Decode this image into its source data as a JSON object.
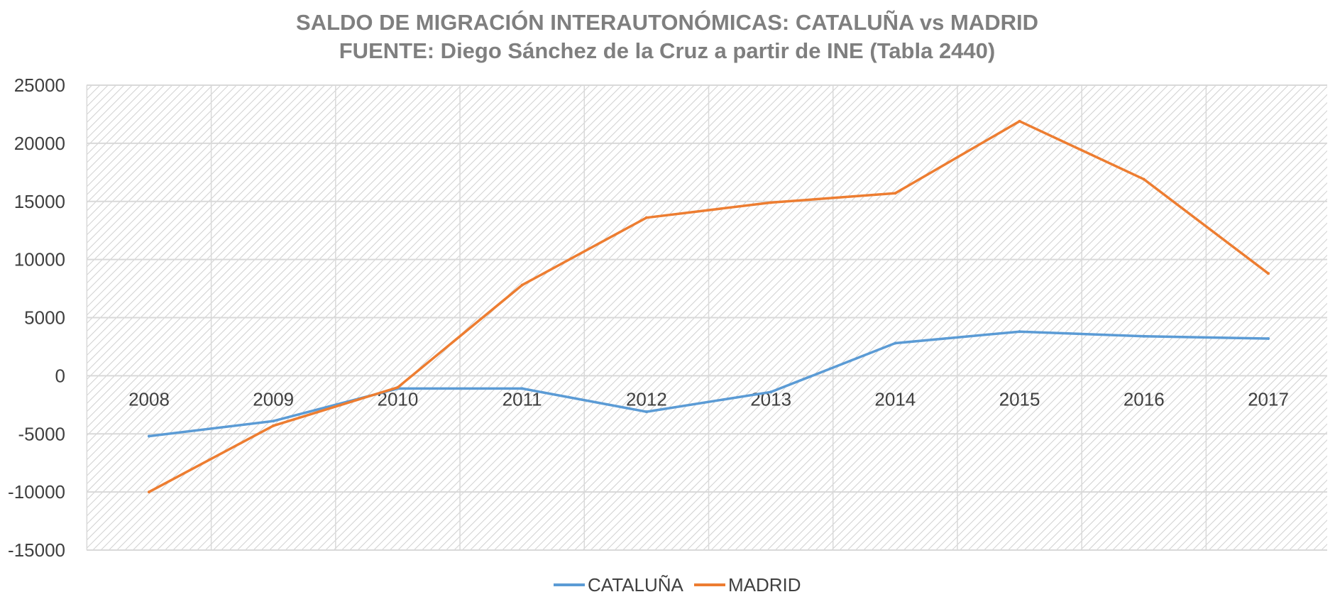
{
  "chart_data": {
    "type": "line",
    "title": "SALDO DE MIGRACIÓN INTERAUTONÓMICAS: CATALUÑA vs MADRID",
    "subtitle": "FUENTE: Diego Sánchez de la Cruz a partir de INE (Tabla 2440)",
    "xlabel": "",
    "ylabel": "",
    "categories": [
      "2008",
      "2009",
      "2010",
      "2011",
      "2012",
      "2013",
      "2014",
      "2015",
      "2016",
      "2017"
    ],
    "series": [
      {
        "name": "CATALUÑA",
        "color": "#5b9bd5",
        "values": [
          -5200,
          -3900,
          -1100,
          -1100,
          -3100,
          -1400,
          2800,
          3800,
          3400,
          3200
        ]
      },
      {
        "name": "MADRID",
        "color": "#ed7d31",
        "values": [
          -10000,
          -4300,
          -1000,
          7800,
          13600,
          14900,
          15700,
          21900,
          16900,
          8800
        ]
      }
    ],
    "ylim": [
      -15000,
      25000
    ],
    "yticks": [
      25000,
      20000,
      15000,
      10000,
      5000,
      0,
      -5000,
      -10000,
      -15000
    ],
    "grid": true,
    "legend": "bottom"
  },
  "colors": {
    "title": "#7f7f7f",
    "tick_text": "#404040",
    "gridline": "#d9d9d9",
    "hatch": "#cfcfcf",
    "background": "#ffffff"
  }
}
